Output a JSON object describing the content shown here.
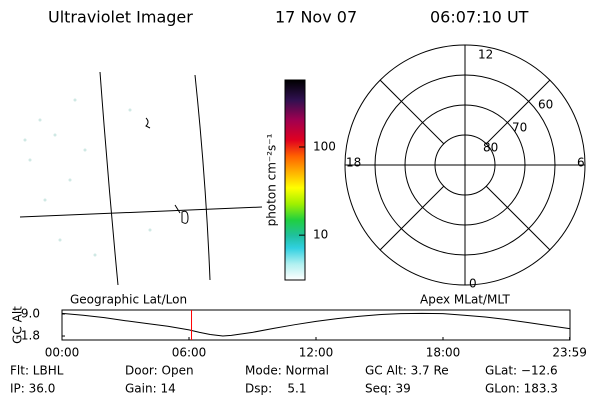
{
  "header": {
    "title": "Ultraviolet Imager",
    "date": "17 Nov 07",
    "time": "06:07:10 UT"
  },
  "colorbar": {
    "label": "photon cm⁻²s⁻¹",
    "log": true,
    "lim": [
      3.1,
      575
    ],
    "ticks": [
      10,
      100
    ]
  },
  "polar": {
    "mlt_labels": [
      "12",
      "6",
      "0",
      "18"
    ],
    "lat_labels": [
      "80",
      "70",
      "60"
    ]
  },
  "chart_data": {
    "type": "line",
    "annotations": [
      "Geographic Lat/Lon",
      "Apex MLat/MLT"
    ],
    "ylabel": "GC Alt",
    "x": [
      0,
      1,
      2,
      3,
      4,
      5,
      6,
      6.5,
      7,
      7.6,
      8,
      9,
      10,
      11,
      12,
      13,
      14,
      15,
      16,
      17,
      18,
      19,
      20,
      21,
      22,
      23,
      23.983
    ],
    "series": [
      {
        "color": "#000000",
        "values": [
          9.2,
          8.6,
          7.8,
          6.8,
          5.9,
          5.0,
          3.8,
          3.0,
          2.3,
          1.8,
          2.0,
          3.0,
          4.3,
          5.5,
          6.6,
          7.5,
          8.2,
          8.8,
          9.1,
          9.2,
          9.1,
          8.6,
          8.0,
          7.2,
          6.2,
          5.2,
          4.2
        ]
      }
    ],
    "xlim": [
      0,
      24
    ],
    "xticks": [
      {
        "value": 0,
        "label": "00:00"
      },
      {
        "value": 6,
        "label": "06:00"
      },
      {
        "value": 12,
        "label": "12:00"
      },
      {
        "value": 18,
        "label": "18:00"
      },
      {
        "value": 23.983,
        "label": "23:59"
      }
    ],
    "ylim": [
      0.5,
      10.3
    ],
    "yticks": [
      {
        "value": 9,
        "label": "9.0"
      },
      {
        "value": 1.8,
        "label": "1.8"
      }
    ],
    "marker": {
      "x": 6.119,
      "color": "#ff0000"
    }
  },
  "footer": {
    "rows": [
      [
        "Flt: LBHL",
        "Door: Open",
        "Mode: Normal",
        "GC Alt: 3.7 Re",
        "GLat: −12.6"
      ],
      [
        "IP: 36.0",
        "Gain: 14",
        "Dsp:    5.1",
        "Seq: 39",
        "GLon: 183.3"
      ]
    ]
  }
}
